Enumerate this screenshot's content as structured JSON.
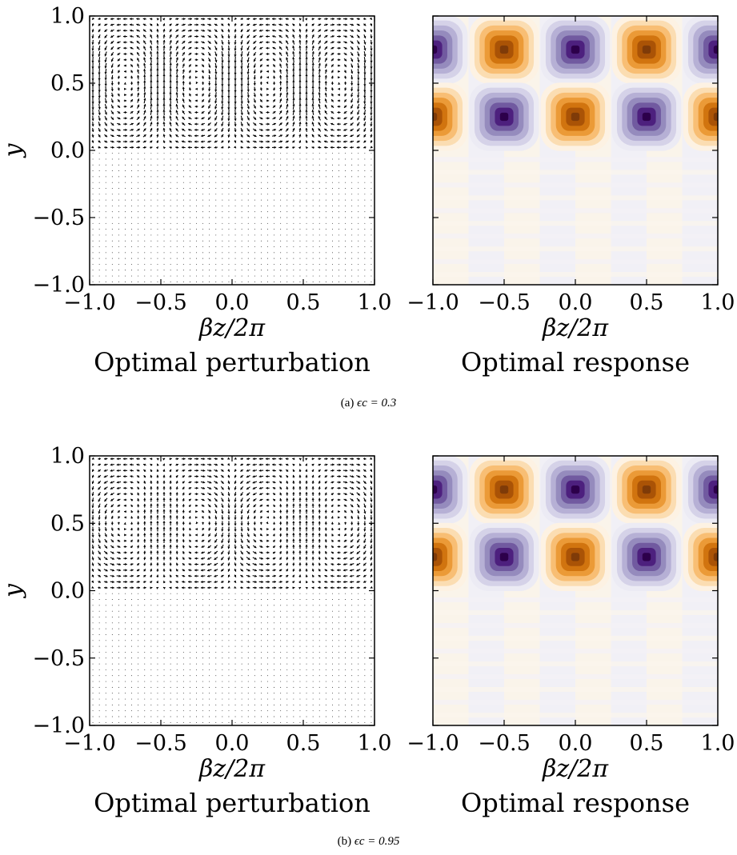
{
  "colors": {
    "axis": "#000000",
    "arrow": "#000000",
    "negative_extreme": "#2d004b",
    "positive_extreme": "#7f3b08",
    "colormap": "PuOr-style diverging (orange = positive, purple = negative)"
  },
  "rows": [
    {
      "caption": {
        "label": "(a)",
        "math": "ϵc = 0.3"
      },
      "eps": 0.3
    },
    {
      "caption": {
        "label": "(b)",
        "math": "ϵc = 0.95"
      },
      "eps": 0.95
    }
  ],
  "chart_data": [
    {
      "type": "quiver",
      "panel": "row-a-left",
      "title": "Optimal perturbation",
      "xlabel": "βz/2π",
      "ylabel": "y",
      "xlim": [
        -1.0,
        1.0
      ],
      "ylim": [
        -1.0,
        1.0
      ],
      "xticks": [
        "−1.0",
        "−0.5",
        "0.0",
        "0.5",
        "1.0"
      ],
      "yticks": [
        "−1.0",
        "−0.5",
        "0.0",
        "0.5",
        "1.0"
      ],
      "structure": "counter-rotating roll vortices in 0 < y < 1, centers near y = 0.5, upflow/downflow boundaries at βz/2π = −0.5, 0, 0.5; near-zero field for y < 0"
    },
    {
      "type": "heatmap",
      "panel": "row-a-right",
      "title": "Optimal response",
      "xlabel": "βz/2π",
      "ylabel": "",
      "xlim": [
        -1.0,
        1.0
      ],
      "ylim": [
        -1.0,
        1.0
      ],
      "xticks": [
        "−1.0",
        "−0.5",
        "0.0",
        "0.5",
        "1.0"
      ],
      "yticks_labelled": false,
      "extrema": [
        {
          "z": -1.0,
          "y": 0.75,
          "sign": "negative"
        },
        {
          "z": -0.5,
          "y": 0.75,
          "sign": "positive"
        },
        {
          "z": 0.0,
          "y": 0.75,
          "sign": "negative"
        },
        {
          "z": 0.5,
          "y": 0.75,
          "sign": "positive"
        },
        {
          "z": 1.0,
          "y": 0.75,
          "sign": "negative"
        },
        {
          "z": -1.0,
          "y": 0.25,
          "sign": "positive"
        },
        {
          "z": -0.5,
          "y": 0.25,
          "sign": "negative"
        },
        {
          "z": 0.0,
          "y": 0.25,
          "sign": "positive"
        },
        {
          "z": 0.5,
          "y": 0.25,
          "sign": "negative"
        },
        {
          "z": 1.0,
          "y": 0.25,
          "sign": "positive"
        }
      ]
    },
    {
      "type": "quiver",
      "panel": "row-b-left",
      "title": "Optimal perturbation",
      "xlabel": "βz/2π",
      "ylabel": "y",
      "xlim": [
        -1.0,
        1.0
      ],
      "ylim": [
        -1.0,
        1.0
      ],
      "xticks": [
        "−1.0",
        "−0.5",
        "0.0",
        "0.5",
        "1.0"
      ],
      "yticks": [
        "−1.0",
        "−0.5",
        "0.0",
        "0.5",
        "1.0"
      ],
      "structure": "wavy roll cells in 0 < y < 1 converging toward βz/2π = −0.5, 0, 0.5; near-zero field for y < 0"
    },
    {
      "type": "heatmap",
      "panel": "row-b-right",
      "title": "Optimal response",
      "xlabel": "βz/2π",
      "ylabel": "",
      "xlim": [
        -1.0,
        1.0
      ],
      "ylim": [
        -1.0,
        1.0
      ],
      "xticks": [
        "−1.0",
        "−0.5",
        "0.0",
        "0.5",
        "1.0"
      ],
      "yticks_labelled": false,
      "extrema": [
        {
          "z": -1.0,
          "y": 0.75,
          "sign": "negative"
        },
        {
          "z": -0.5,
          "y": 0.75,
          "sign": "positive"
        },
        {
          "z": 0.0,
          "y": 0.75,
          "sign": "negative"
        },
        {
          "z": 0.5,
          "y": 0.75,
          "sign": "positive"
        },
        {
          "z": 1.0,
          "y": 0.75,
          "sign": "negative"
        },
        {
          "z": -1.0,
          "y": 0.25,
          "sign": "positive"
        },
        {
          "z": -0.5,
          "y": 0.25,
          "sign": "negative"
        },
        {
          "z": 0.0,
          "y": 0.25,
          "sign": "positive"
        },
        {
          "z": 0.5,
          "y": 0.25,
          "sign": "negative"
        },
        {
          "z": 1.0,
          "y": 0.25,
          "sign": "positive"
        }
      ]
    }
  ]
}
